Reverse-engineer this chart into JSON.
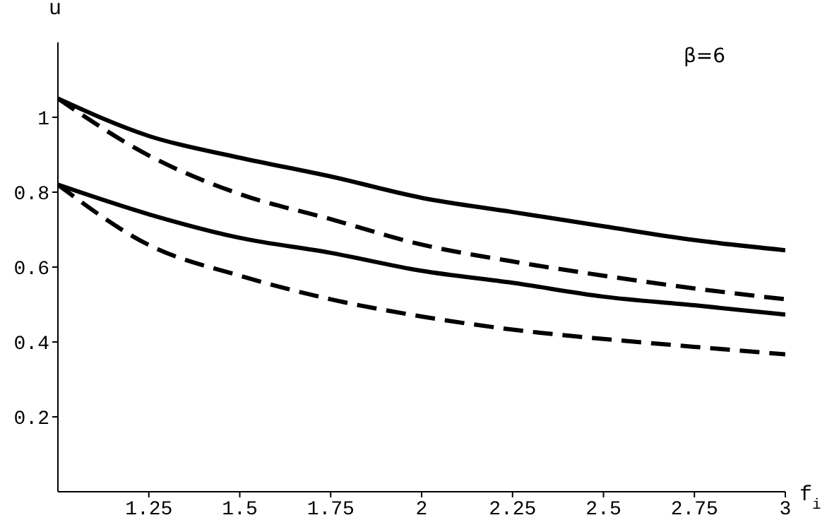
{
  "chart_data": {
    "type": "line",
    "xlabel": "f$_{i}$",
    "ylabel": "u",
    "annotations": [
      "β=6"
    ],
    "x": [
      1,
      1.25,
      1.5,
      1.75,
      2,
      2.25,
      2.5,
      2.75,
      3
    ],
    "series": [
      {
        "color": "#000000",
        "line_style": "solid",
        "values": [
          1.05,
          0.95,
          0.892,
          0.842,
          0.785,
          0.747,
          0.709,
          0.672,
          0.645
        ]
      },
      {
        "color": "#000000",
        "line_style": "dashed",
        "values": [
          1.05,
          0.898,
          0.795,
          0.728,
          0.66,
          0.615,
          0.577,
          0.543,
          0.514
        ]
      },
      {
        "color": "#000000",
        "line_style": "solid",
        "values": [
          0.82,
          0.741,
          0.678,
          0.638,
          0.59,
          0.558,
          0.521,
          0.498,
          0.473
        ]
      },
      {
        "color": "#000000",
        "line_style": "dashed",
        "values": [
          0.82,
          0.659,
          0.577,
          0.514,
          0.468,
          0.433,
          0.408,
          0.387,
          0.367
        ]
      }
    ],
    "xlim": [
      1,
      3
    ],
    "xticks": [
      1.25,
      1.5,
      1.75,
      2,
      2.25,
      2.5,
      2.75,
      3
    ],
    "ylim": [
      0,
      1.2
    ],
    "yticks": [
      0.2,
      0.4,
      0.6,
      0.8,
      1
    ],
    "grid": false,
    "legend": false,
    "marker": "none"
  }
}
